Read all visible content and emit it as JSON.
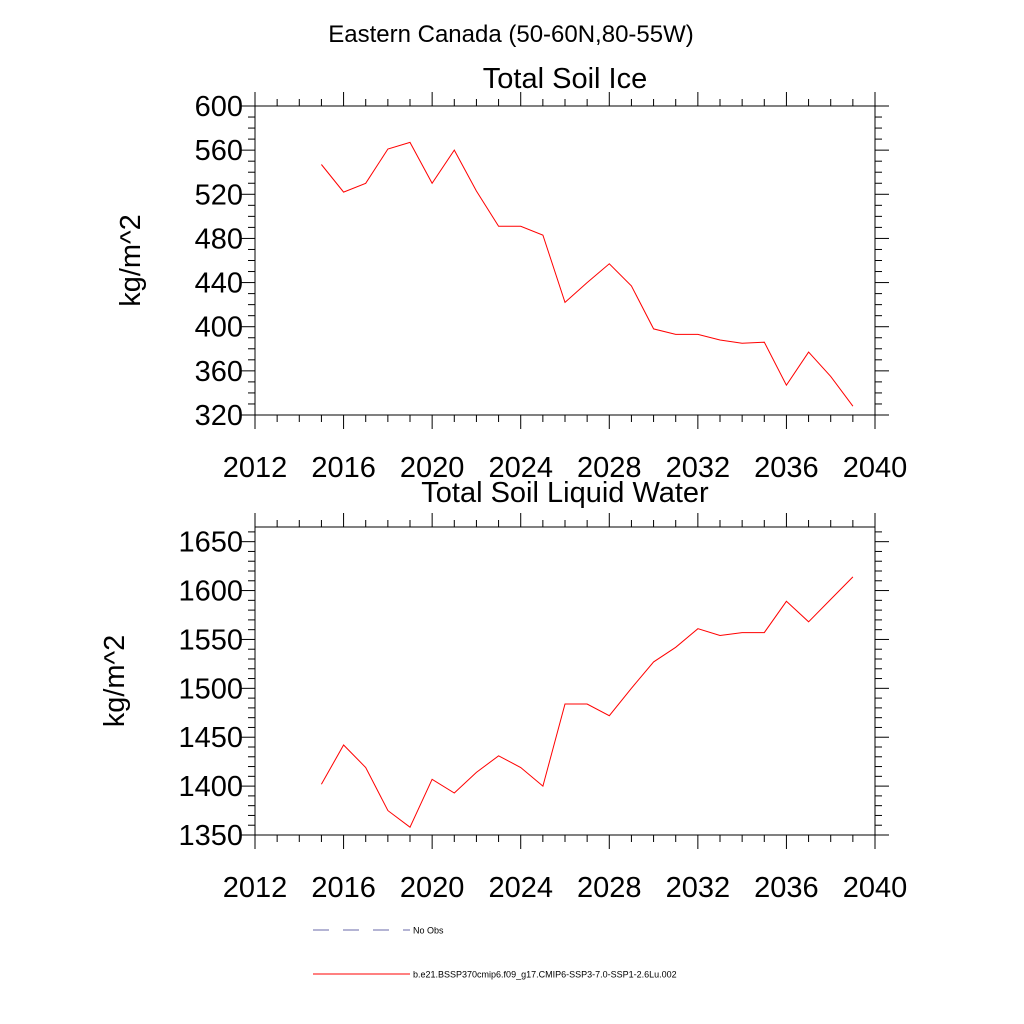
{
  "figure": {
    "title": "Eastern Canada (50-60N,80-55W)"
  },
  "chart_data": [
    {
      "type": "line",
      "title": "Total Soil Ice",
      "xlabel": "",
      "ylabel": "kg/m^2",
      "xlim": [
        2012,
        2040
      ],
      "ylim": [
        320,
        600
      ],
      "xticks": [
        2012,
        2016,
        2020,
        2024,
        2028,
        2032,
        2036,
        2040
      ],
      "yticks": [
        320,
        360,
        400,
        440,
        480,
        520,
        560,
        600
      ],
      "grid": false,
      "series": [
        {
          "name": "b.e21.BSSP370cmip6.f09_g17.CMIP6-SSP3-7.0-SSP1-2.6Lu.002",
          "color": "#ff0000",
          "x": [
            2015,
            2016,
            2017,
            2018,
            2019,
            2020,
            2021,
            2022,
            2023,
            2024,
            2025,
            2026,
            2027,
            2028,
            2029,
            2030,
            2031,
            2032,
            2033,
            2034,
            2035,
            2036,
            2037,
            2038,
            2039
          ],
          "y": [
            547,
            522,
            530,
            561,
            567,
            530,
            560,
            523,
            491,
            491,
            483,
            422,
            440,
            457,
            437,
            398,
            393,
            393,
            388,
            385,
            386,
            347,
            377,
            355,
            328
          ]
        }
      ]
    },
    {
      "type": "line",
      "title": "Total Soil Liquid Water",
      "xlabel": "",
      "ylabel": "kg/m^2",
      "xlim": [
        2012,
        2040
      ],
      "ylim": [
        1350,
        1665
      ],
      "xticks": [
        2012,
        2016,
        2020,
        2024,
        2028,
        2032,
        2036,
        2040
      ],
      "yticks": [
        1350,
        1400,
        1450,
        1500,
        1550,
        1600,
        1650
      ],
      "grid": false,
      "series": [
        {
          "name": "b.e21.BSSP370cmip6.f09_g17.CMIP6-SSP3-7.0-SSP1-2.6Lu.002",
          "color": "#ff0000",
          "x": [
            2015,
            2016,
            2017,
            2018,
            2019,
            2020,
            2021,
            2022,
            2023,
            2024,
            2025,
            2026,
            2027,
            2028,
            2029,
            2030,
            2031,
            2032,
            2033,
            2034,
            2035,
            2036,
            2037,
            2038,
            2039
          ],
          "y": [
            1402,
            1442,
            1419,
            1375,
            1358,
            1407,
            1393,
            1414,
            1431,
            1419,
            1400,
            1484,
            1484,
            1472,
            1500,
            1527,
            1542,
            1561,
            1554,
            1557,
            1557,
            1589,
            1568,
            1591,
            1614
          ]
        }
      ]
    }
  ],
  "legend": {
    "placement": "bottom",
    "items": [
      {
        "label": "No Obs",
        "color": "#6a6aaa",
        "style": "dashed"
      },
      {
        "label": "b.e21.BSSP370cmip6.f09_g17.CMIP6-SSP3-7.0-SSP1-2.6Lu.002",
        "color": "#ff0000",
        "style": "solid"
      }
    ]
  }
}
